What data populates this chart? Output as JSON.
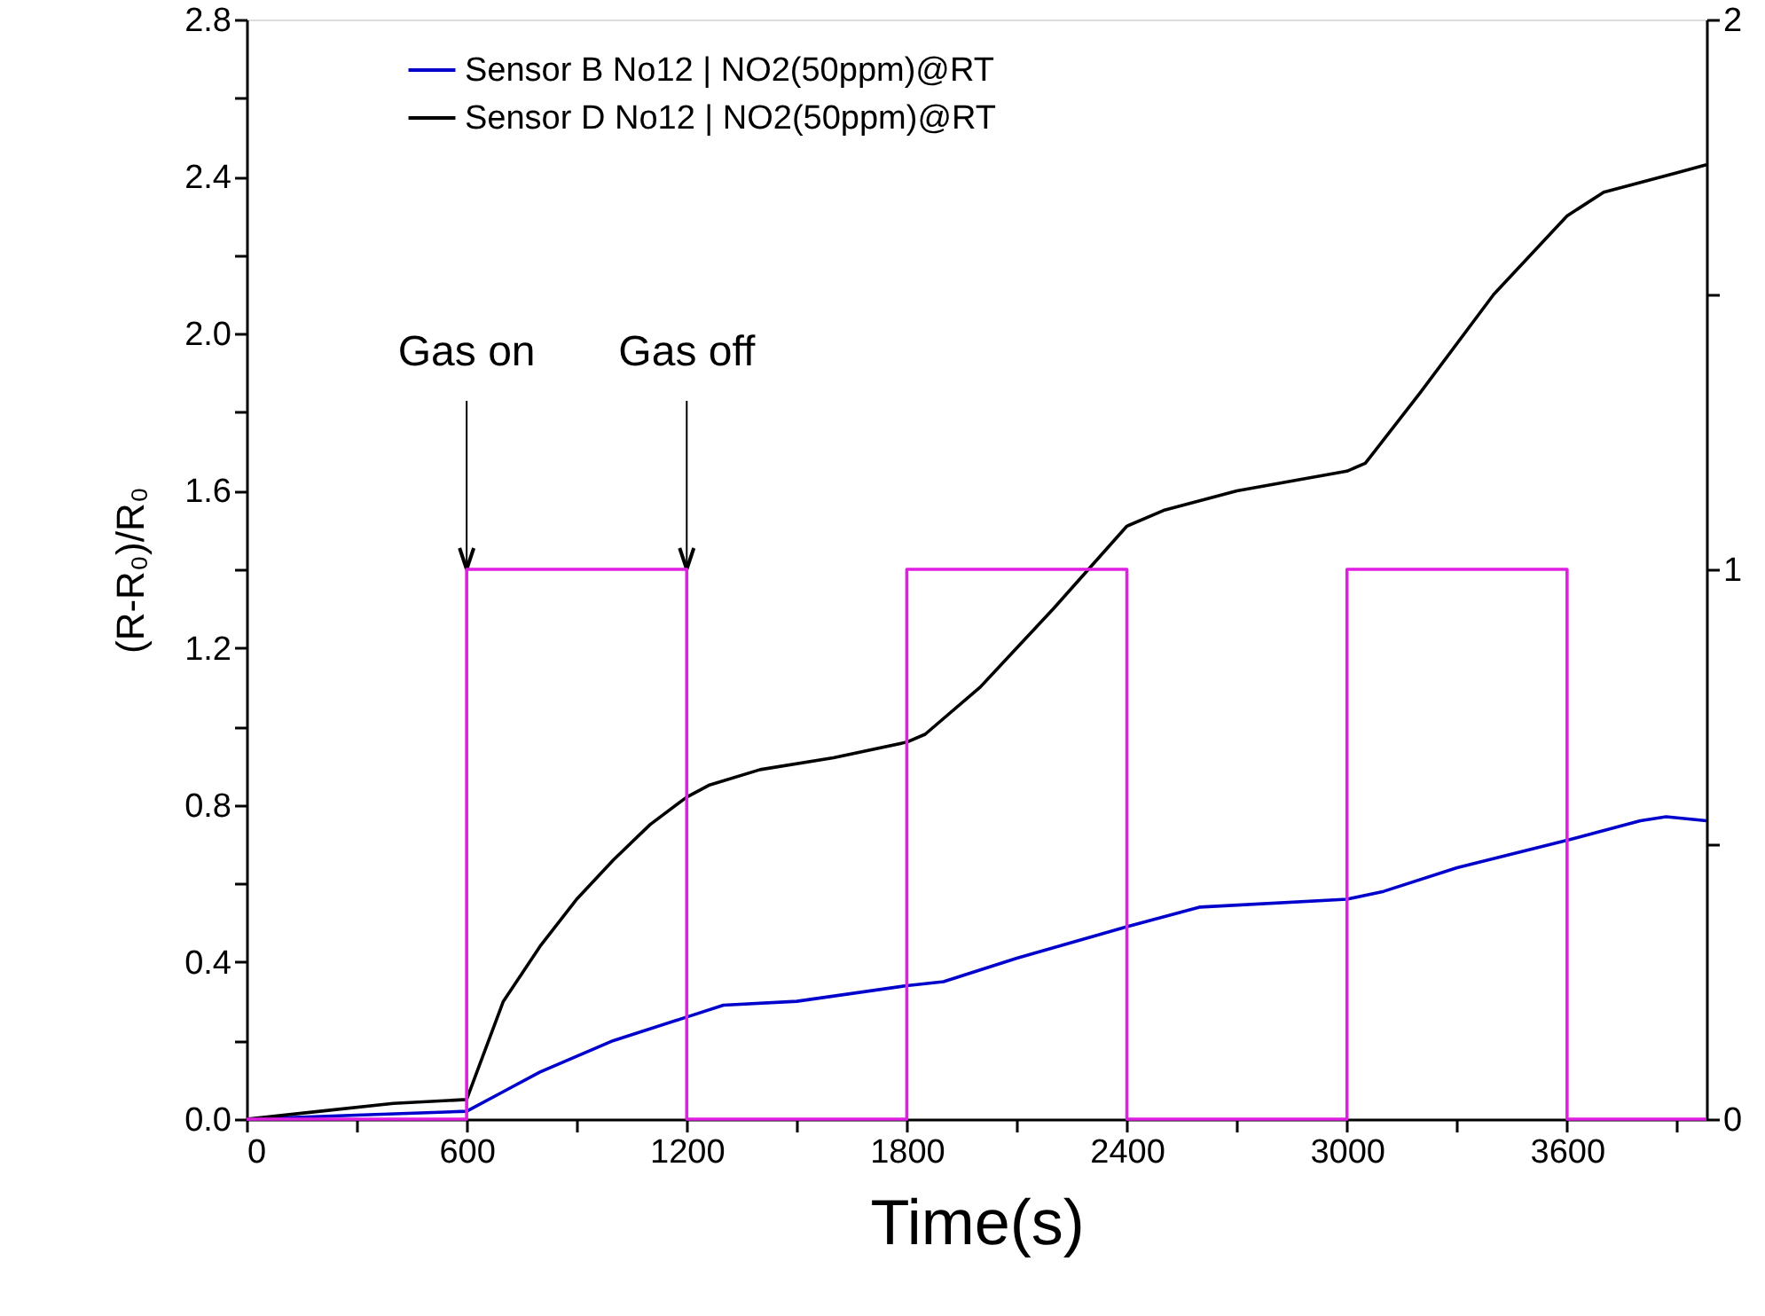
{
  "chart_data": {
    "type": "line",
    "xlabel": "Time(s)",
    "ylabel": "(R-R₀)/R₀",
    "legend": "top left",
    "xlim": [
      0,
      3980
    ],
    "xticks": [
      0,
      {
        "value": 300,
        "label": null
      },
      600,
      {
        "value": 900,
        "label": null
      },
      1200,
      {
        "value": 1500,
        "label": null
      },
      1800,
      {
        "value": 2100,
        "label": null
      },
      2400,
      {
        "value": 2700,
        "label": null
      },
      3000,
      {
        "value": 3300,
        "label": null
      },
      3600,
      {
        "value": 3900,
        "label": null
      }
    ],
    "ylim": [
      0,
      2.8
    ],
    "yticks": [
      {
        "value": 0,
        "label": "0.0"
      },
      {
        "value": 0.2,
        "label": null
      },
      0.4,
      {
        "value": 0.6,
        "label": null
      },
      0.8,
      {
        "value": 1,
        "label": null
      },
      1.2,
      {
        "value": 1.4,
        "label": null
      },
      1.6,
      {
        "value": 1.8,
        "label": null
      },
      {
        "value": 2,
        "label": "2.0"
      },
      {
        "value": 2.2,
        "label": null
      },
      2.4,
      {
        "value": 2.6,
        "label": null
      },
      2.8
    ],
    "y2lim": [
      0,
      2
    ],
    "y2ticks": [
      0,
      {
        "value": 0.5,
        "label": null
      },
      1,
      {
        "value": 1.5,
        "label": null
      },
      2
    ],
    "annotations": [
      {
        "text": "Gas on",
        "x": 600,
        "y": 1.4
      },
      {
        "text": "Gas off",
        "x": 1200,
        "y": 1.4
      }
    ],
    "series": [
      {
        "name": "Sensor B No12 | NO2(50ppm)@RT",
        "color": "#0000cc",
        "x": [
          0,
          300,
          600,
          700,
          800,
          1000,
          1200,
          1300,
          1500,
          1800,
          1900,
          2100,
          2400,
          2600,
          3000,
          3100,
          3300,
          3600,
          3800,
          3870,
          3980
        ],
        "values": [
          0,
          0.01,
          0.02,
          0.07,
          0.12,
          0.2,
          0.26,
          0.29,
          0.3,
          0.34,
          0.35,
          0.41,
          0.49,
          0.54,
          0.56,
          0.58,
          0.64,
          0.71,
          0.76,
          0.77,
          0.76
        ]
      },
      {
        "name": "Sensor D No12 | NO2(50ppm)@RT",
        "color": "#000000",
        "x": [
          0,
          200,
          400,
          600,
          620,
          700,
          800,
          900,
          1000,
          1100,
          1200,
          1260,
          1400,
          1600,
          1800,
          1850,
          2000,
          2200,
          2400,
          2500,
          2700,
          3000,
          3050,
          3200,
          3400,
          3600,
          3700,
          3900,
          3980
        ],
        "values": [
          0,
          0.02,
          0.04,
          0.05,
          0.1,
          0.3,
          0.44,
          0.56,
          0.66,
          0.75,
          0.82,
          0.85,
          0.89,
          0.92,
          0.96,
          0.98,
          1.1,
          1.3,
          1.51,
          1.55,
          1.6,
          1.65,
          1.67,
          1.85,
          2.1,
          2.3,
          2.36,
          2.41,
          2.43
        ]
      },
      {
        "color": "#e020e0",
        "axis": "y2",
        "x": [
          0,
          600,
          600,
          1200,
          1200,
          1800,
          1800,
          2400,
          2400,
          3000,
          3000,
          3600,
          3600,
          3980
        ],
        "values": [
          0,
          0,
          1,
          1,
          0,
          0,
          1,
          1,
          0,
          0,
          1,
          1,
          0,
          0
        ]
      }
    ]
  }
}
